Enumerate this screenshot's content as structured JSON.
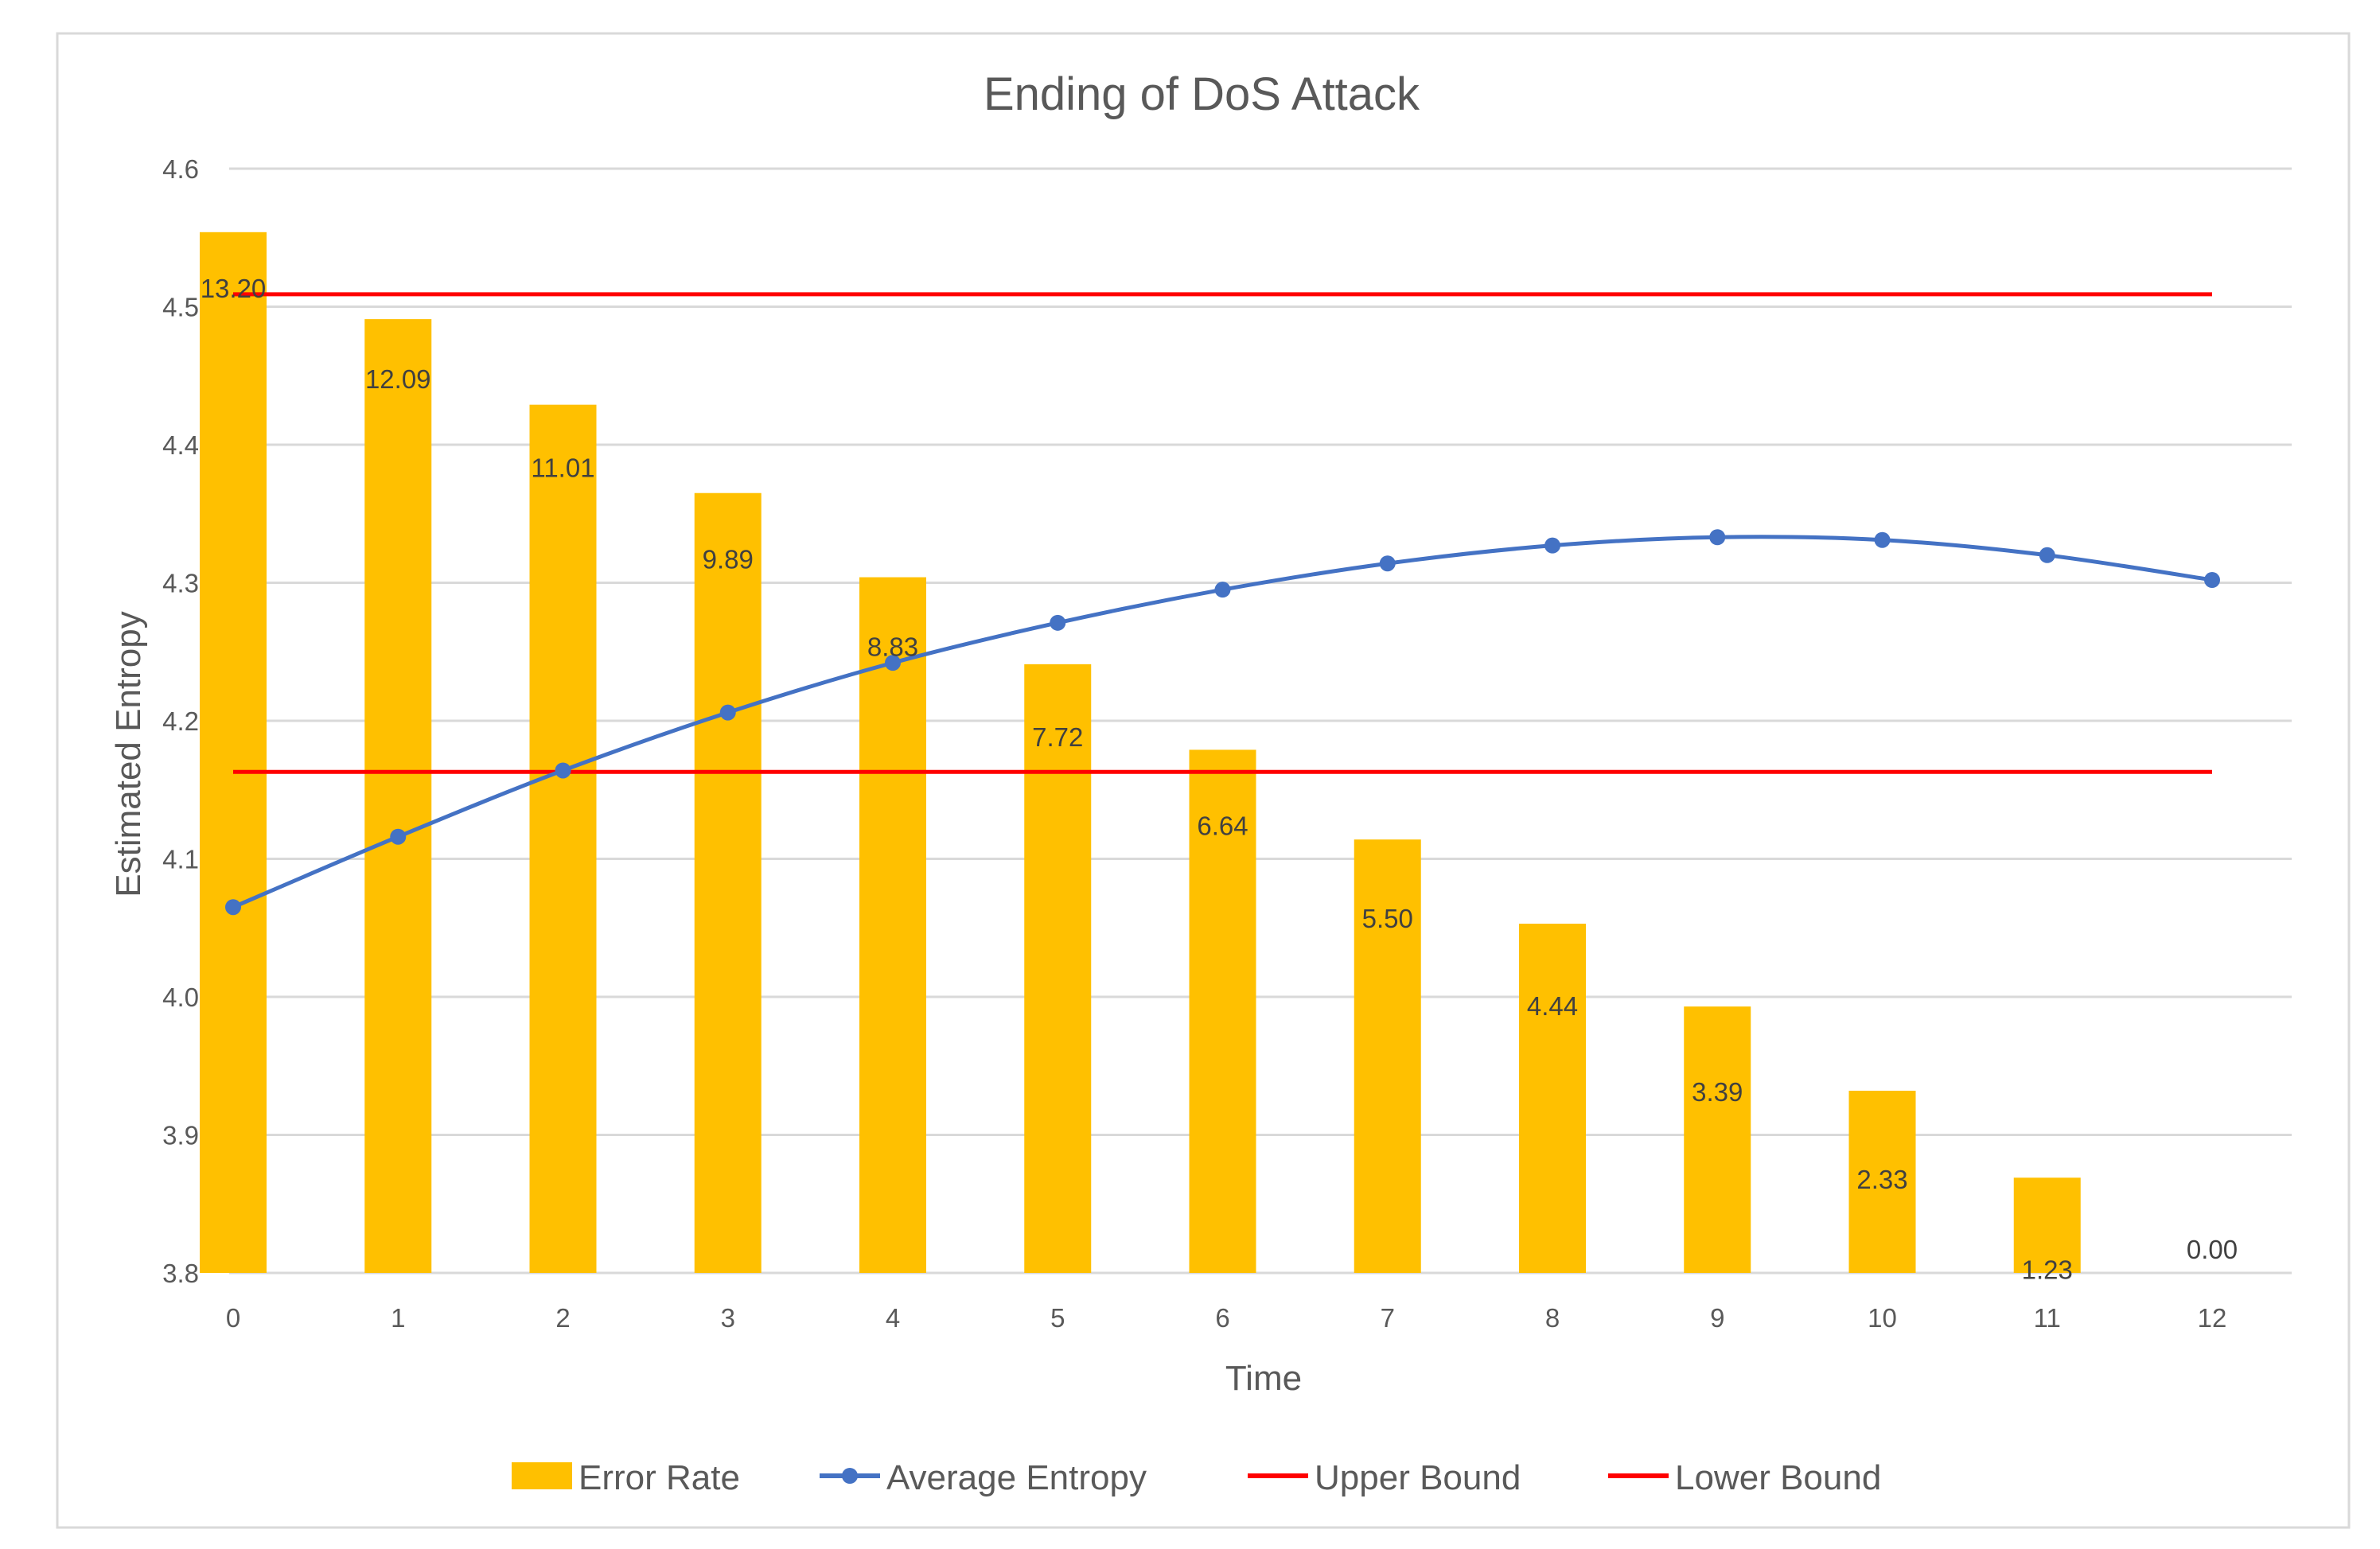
{
  "chart_data": {
    "type": "bar+line",
    "title": "Ending of DoS Attack",
    "xlabel": "Time",
    "ylabel": "Estimated Entropy",
    "categories": [
      "0",
      "1",
      "2",
      "3",
      "4",
      "5",
      "6",
      "7",
      "8",
      "9",
      "10",
      "11",
      "12"
    ],
    "ylim": [
      3.8,
      4.6
    ],
    "yticks": [
      "3.8",
      "3.9",
      "4.0",
      "4.1",
      "4.2",
      "4.3",
      "4.4",
      "4.5",
      "4.6"
    ],
    "grid": true,
    "legend_position": "bottom",
    "series": [
      {
        "name": "Error Rate",
        "type": "bar",
        "color": "#FFC000",
        "values": [
          13.2,
          12.09,
          11.01,
          9.89,
          8.83,
          7.72,
          6.64,
          5.5,
          4.44,
          3.39,
          2.33,
          1.23,
          0.0
        ],
        "labels": [
          "13.20",
          "12.09",
          "11.01",
          "9.89",
          "8.83",
          "7.72",
          "6.64",
          "5.50",
          "4.44",
          "3.39",
          "2.33",
          "1.23",
          "0.00"
        ],
        "plotted_heights": [
          4.554,
          4.491,
          4.429,
          4.365,
          4.304,
          4.241,
          4.179,
          4.114,
          4.053,
          3.993,
          3.932,
          3.869,
          3.8
        ]
      },
      {
        "name": "Average Entropy",
        "type": "line",
        "color": "#4472C4",
        "values": [
          4.065,
          4.116,
          4.164,
          4.206,
          4.242,
          4.271,
          4.295,
          4.314,
          4.327,
          4.333,
          4.331,
          4.32,
          4.302
        ]
      },
      {
        "name": "Upper Bound",
        "type": "line",
        "color": "#FF0000",
        "values": [
          4.509,
          4.509,
          4.509,
          4.509,
          4.509,
          4.509,
          4.509,
          4.509,
          4.509,
          4.509,
          4.509,
          4.509,
          4.509
        ]
      },
      {
        "name": "Lower Bound",
        "type": "line",
        "color": "#FF0000",
        "values": [
          4.163,
          4.163,
          4.163,
          4.163,
          4.163,
          4.163,
          4.163,
          4.163,
          4.163,
          4.163,
          4.163,
          4.163,
          4.163
        ]
      }
    ]
  }
}
